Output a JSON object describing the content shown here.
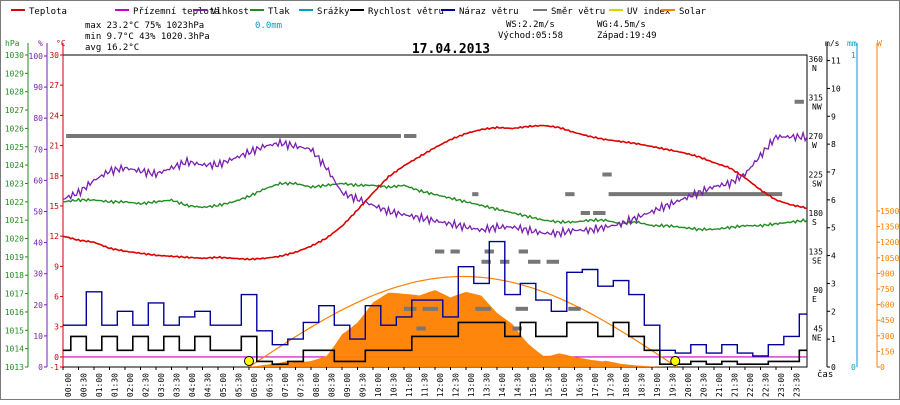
{
  "chart_data": {
    "type": "line",
    "title": "17.04.2013",
    "xlabel": "čas",
    "x_ticks": [
      "00:00",
      "00:30",
      "01:00",
      "01:30",
      "02:00",
      "02:30",
      "03:00",
      "03:30",
      "04:00",
      "04:30",
      "05:00",
      "05:30",
      "06:00",
      "06:30",
      "07:00",
      "07:30",
      "08:00",
      "08:30",
      "09:00",
      "09:30",
      "10:00",
      "10:30",
      "11:00",
      "11:30",
      "12:00",
      "12:30",
      "13:00",
      "13:30",
      "14:00",
      "14:30",
      "15:00",
      "15:30",
      "16:00",
      "16:30",
      "17:00",
      "17:30",
      "18:00",
      "18:30",
      "19:00",
      "19:30",
      "20:00",
      "20:30",
      "21:00",
      "21:30",
      "22:00",
      "22:30",
      "23:00",
      "23:30"
    ],
    "legend": [
      {
        "name": "Teplota",
        "color": "#dd0000"
      },
      {
        "name": "Přízemní teplota",
        "color": "#cc00cc"
      },
      {
        "name": "Vlhkost",
        "color": "#7a1fb0"
      },
      {
        "name": "Tlak",
        "color": "#228b22"
      },
      {
        "name": "Srážky",
        "color": "#00a0c8"
      },
      {
        "name": "Rychlost větru",
        "color": "#000000"
      },
      {
        "name": "Náraz větru",
        "color": "#000099"
      },
      {
        "name": "Směr větru",
        "color": "#777777"
      },
      {
        "name": "UV index",
        "color": "#e0d000"
      },
      {
        "name": "Solar",
        "color": "#ff7f00"
      }
    ],
    "stats": {
      "max_line": "max  23.2°C  75%  1023hPa",
      "min_line": "min   9.7°C  43%  1020.3hPa",
      "avg_line": "avg  16.2°C",
      "rain": "0.0mm",
      "ws": "WS:2.2m/s",
      "wg": "WG:4.5m/s",
      "sunrise": "Východ:05:58",
      "sunset": "Západ:19:49"
    },
    "axes": {
      "hpa": {
        "label": "hPa",
        "ticks": [
          "1030",
          "1029",
          "1028",
          "1027",
          "1026",
          "1025",
          "1024",
          "1023",
          "1022",
          "1021",
          "1020",
          "1019",
          "1018",
          "1017",
          "1016",
          "1015",
          "1014",
          "1013"
        ],
        "color": "#228b22"
      },
      "percent": {
        "label": "%",
        "ticks": [
          "100",
          "90",
          "80",
          "70",
          "60",
          "50",
          "40",
          "30",
          "20",
          "10",
          "0"
        ],
        "color": "#7a1fb0"
      },
      "celsius": {
        "label": "°C",
        "ticks": [
          "30",
          "27",
          "24",
          "21",
          "18",
          "15",
          "12",
          "9",
          "6",
          "3",
          "0",
          "-1"
        ],
        "color": "#cc0000"
      },
      "wind_ms": {
        "label": "m/s",
        "ticks": [
          "11",
          "10",
          "9",
          "8",
          "7",
          "6",
          "5",
          "4",
          "3",
          "2",
          "1",
          "0"
        ],
        "color": "#000000"
      },
      "direction": {
        "ticks": [
          "360",
          "315",
          "270",
          "225",
          "180",
          "135",
          "90",
          "45"
        ],
        "letters": [
          "N",
          "NW",
          "W",
          "SW",
          "S",
          "SE",
          "E",
          "NE"
        ],
        "color": "#000000"
      },
      "mm": {
        "label": "mm",
        "ticks": [
          "1",
          "0"
        ],
        "color": "#00a0c8"
      },
      "uv": {
        "label": "W",
        "ticks": [
          "1500",
          "1350",
          "1200",
          "1050",
          "900",
          "750",
          "600",
          "450",
          "300",
          "150",
          "0"
        ],
        "color": "#ff7f00"
      }
    },
    "series": [
      {
        "name": "Teplota",
        "unit": "°C",
        "x": [
          0,
          0.5,
          1,
          1.5,
          2,
          2.5,
          3,
          3.5,
          4,
          4.5,
          5,
          5.5,
          6,
          6.5,
          7,
          7.5,
          8,
          8.5,
          9,
          9.5,
          10,
          10.5,
          11,
          11.5,
          12,
          12.5,
          13,
          13.5,
          14,
          14.5,
          15,
          15.5,
          16,
          16.5,
          17,
          17.5,
          18,
          18.5,
          19,
          19.5,
          20,
          20.5,
          21,
          21.5,
          22,
          22.5,
          23,
          23.5,
          24
        ],
        "values": [
          12.0,
          11.6,
          11.4,
          10.8,
          10.5,
          10.3,
          10.1,
          10.0,
          9.9,
          9.8,
          9.9,
          9.8,
          9.7,
          9.8,
          10.0,
          10.4,
          11.0,
          11.8,
          13.0,
          14.6,
          16.3,
          17.9,
          19.0,
          19.9,
          20.8,
          21.6,
          22.2,
          22.6,
          22.8,
          22.7,
          22.9,
          23.0,
          22.8,
          22.3,
          21.9,
          21.6,
          21.4,
          21.2,
          20.9,
          20.6,
          20.3,
          19.9,
          19.3,
          18.8,
          17.8,
          16.6,
          15.6,
          15.1,
          14.8
        ]
      },
      {
        "name": "Vlhkost",
        "unit": "%",
        "x": [
          0,
          0.5,
          1,
          1.5,
          2,
          2.5,
          3,
          3.5,
          4,
          4.5,
          5,
          5.5,
          6,
          6.5,
          7,
          7.5,
          8,
          8.5,
          9,
          9.5,
          10,
          10.5,
          11,
          11.5,
          12,
          12.5,
          13,
          13.5,
          14,
          14.5,
          15,
          15.5,
          16,
          16.5,
          17,
          17.5,
          18,
          18.5,
          19,
          19.5,
          20,
          20.5,
          21,
          21.5,
          22,
          22.5,
          23,
          23.5,
          24
        ],
        "values": [
          54,
          56,
          60,
          63,
          64,
          63,
          62,
          64,
          66,
          65,
          65,
          67,
          69,
          71,
          72,
          71,
          70,
          64,
          56,
          54,
          52,
          50,
          49,
          48,
          47,
          46,
          45,
          44,
          45,
          45,
          44,
          43,
          43,
          44,
          44,
          45,
          46,
          48,
          50,
          52,
          54,
          56,
          58,
          59,
          62,
          68,
          74,
          74,
          74
        ]
      },
      {
        "name": "Tlak",
        "unit": "hPa",
        "x": [
          0,
          0.5,
          1,
          1.5,
          2,
          2.5,
          3,
          3.5,
          4,
          4.5,
          5,
          5.5,
          6,
          6.5,
          7,
          7.5,
          8,
          8.5,
          9,
          9.5,
          10,
          10.5,
          11,
          11.5,
          12,
          12.5,
          13,
          13.5,
          14,
          14.5,
          15,
          15.5,
          16,
          16.5,
          17,
          17.5,
          18,
          18.5,
          19,
          19.5,
          20,
          20.5,
          21,
          21.5,
          22,
          22.5,
          23,
          23.5,
          24
        ],
        "values": [
          1022.0,
          1022.1,
          1022.1,
          1022.0,
          1022.0,
          1021.9,
          1022.0,
          1022.1,
          1021.8,
          1021.7,
          1021.8,
          1022.0,
          1022.3,
          1022.7,
          1023.0,
          1023.0,
          1022.8,
          1022.9,
          1023.0,
          1022.9,
          1022.9,
          1022.8,
          1022.9,
          1022.6,
          1022.4,
          1022.2,
          1022.0,
          1021.8,
          1021.6,
          1021.4,
          1021.2,
          1021.0,
          1020.9,
          1020.9,
          1021.0,
          1021.0,
          1020.8,
          1020.9,
          1020.7,
          1020.7,
          1020.6,
          1020.5,
          1020.5,
          1020.6,
          1020.7,
          1020.7,
          1020.8,
          1020.9,
          1021.0
        ]
      },
      {
        "name": "Solar",
        "unit": "W",
        "x": [
          0,
          6,
          6.5,
          7,
          7.5,
          8,
          8.5,
          9,
          9.5,
          10,
          10.5,
          11,
          11.5,
          12,
          12.5,
          13,
          13.5,
          14,
          14.5,
          15,
          15.5,
          16,
          16.5,
          17,
          17.5,
          18,
          18.5,
          19,
          19.5,
          24
        ],
        "values": [
          0,
          0,
          20,
          40,
          80,
          100,
          160,
          420,
          520,
          700,
          760,
          720,
          690,
          740,
          680,
          760,
          760,
          620,
          540,
          330,
          180,
          220,
          140,
          90,
          60,
          30,
          15,
          5,
          0,
          0
        ]
      },
      {
        "name": "Náraz větru",
        "unit": "m/s",
        "x": [
          0,
          0.5,
          1,
          1.5,
          2,
          2.5,
          3,
          3.5,
          4,
          4.5,
          5,
          5.5,
          6,
          6.5,
          7,
          7.5,
          8,
          8.5,
          9,
          9.5,
          10,
          10.5,
          11,
          11.5,
          12,
          12.5,
          13,
          13.5,
          14,
          14.5,
          15,
          15.5,
          16,
          16.5,
          17,
          17.5,
          18,
          18.5,
          19,
          19.5,
          20,
          20.5,
          21,
          21.5,
          22,
          22.5,
          23,
          23.5,
          24
        ],
        "values": [
          1.5,
          1.5,
          2.7,
          1.5,
          2.0,
          1.5,
          2.3,
          1.5,
          1.8,
          2.0,
          1.5,
          1.5,
          2.6,
          1.3,
          0.8,
          1.0,
          1.6,
          2.2,
          1.5,
          1.0,
          2.2,
          1.5,
          1.8,
          2.4,
          2.4,
          1.8,
          3.6,
          3.0,
          4.5,
          2.6,
          3.0,
          2.4,
          2.0,
          3.4,
          3.5,
          2.9,
          3.1,
          2.6,
          1.5,
          0.6,
          0.5,
          0.8,
          0.5,
          0.8,
          0.5,
          0.4,
          0.8,
          1.1,
          1.9
        ]
      },
      {
        "name": "Rychlost větru",
        "unit": "m/s",
        "x": [
          0,
          0.5,
          1,
          1.5,
          2,
          2.5,
          3,
          3.5,
          4,
          4.5,
          5,
          5.5,
          6,
          6.5,
          7,
          7.5,
          8,
          8.5,
          9,
          9.5,
          10,
          10.5,
          11,
          11.5,
          12,
          12.5,
          13,
          13.5,
          14,
          14.5,
          15,
          15.5,
          16,
          16.5,
          17,
          17.5,
          18,
          18.5,
          19,
          19.5,
          20,
          20.5,
          21,
          21.5,
          22,
          22.5,
          23,
          23.5,
          24
        ],
        "values": [
          0.6,
          1.1,
          0.6,
          1.1,
          0.6,
          1.1,
          0.6,
          1.1,
          0.6,
          1.1,
          0.6,
          0.6,
          1.1,
          0.2,
          0.1,
          0.2,
          0.6,
          0.6,
          0.2,
          0.2,
          0.6,
          0.6,
          0.6,
          1.1,
          1.1,
          1.1,
          1.6,
          1.6,
          1.6,
          1.1,
          1.6,
          1.1,
          1.1,
          1.6,
          1.6,
          1.1,
          1.6,
          1.1,
          0.6,
          0.1,
          0.1,
          0.2,
          0.1,
          0.2,
          0.1,
          0.1,
          0.2,
          0.2,
          0.6
        ]
      },
      {
        "name": "Směr větru",
        "unit": "°",
        "segments": [
          {
            "x0": 0.1,
            "x1": 10.9,
            "value": 270
          },
          {
            "x0": 11.0,
            "x1": 11.4,
            "value": 270
          },
          {
            "x0": 16.7,
            "x1": 17.0,
            "value": 180
          },
          {
            "x0": 17.1,
            "x1": 17.5,
            "value": 180
          },
          {
            "x0": 17.6,
            "x1": 23.2,
            "value": 202
          },
          {
            "x0": 16.2,
            "x1": 16.5,
            "value": 202
          },
          {
            "x0": 17.4,
            "x1": 17.7,
            "value": 225
          },
          {
            "x0": 13.2,
            "x1": 13.4,
            "value": 202
          },
          {
            "x0": 12.0,
            "x1": 12.3,
            "value": 135
          },
          {
            "x0": 12.5,
            "x1": 12.8,
            "value": 135
          },
          {
            "x0": 13.5,
            "x1": 13.8,
            "value": 123
          },
          {
            "x0": 14.1,
            "x1": 14.4,
            "value": 123
          },
          {
            "x0": 15.0,
            "x1": 15.4,
            "value": 123
          },
          {
            "x0": 15.6,
            "x1": 16.0,
            "value": 123
          },
          {
            "x0": 13.6,
            "x1": 13.9,
            "value": 135
          },
          {
            "x0": 14.7,
            "x1": 15.0,
            "value": 135
          },
          {
            "x0": 11.0,
            "x1": 11.4,
            "value": 68
          },
          {
            "x0": 11.6,
            "x1": 12.1,
            "value": 68
          },
          {
            "x0": 13.3,
            "x1": 13.8,
            "value": 68
          },
          {
            "x0": 14.6,
            "x1": 15.0,
            "value": 68
          },
          {
            "x0": 16.3,
            "x1": 16.7,
            "value": 68
          },
          {
            "x0": 11.4,
            "x1": 11.7,
            "value": 45
          },
          {
            "x0": 14.5,
            "x1": 14.8,
            "value": 45
          },
          {
            "x0": 23.6,
            "x1": 23.9,
            "value": 310
          }
        ]
      },
      {
        "name": "UV index",
        "unit": "",
        "markers": [
          {
            "x": 6.0,
            "value": 0
          },
          {
            "x": 19.75,
            "value": 0
          }
        ]
      }
    ]
  }
}
